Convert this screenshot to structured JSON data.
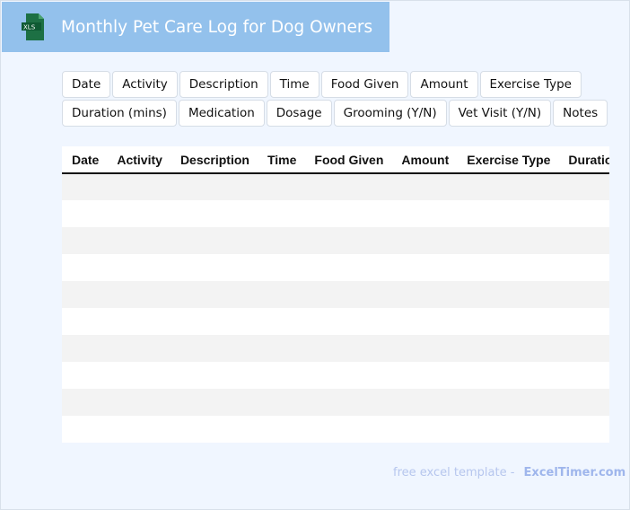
{
  "header": {
    "title": "Monthly Pet Care Log for Dog Owners",
    "icon": "xls-file-icon",
    "icon_text": "XLS",
    "color": "#93c1ec"
  },
  "columns": [
    "Date",
    "Activity",
    "Description",
    "Time",
    "Food Given",
    "Amount",
    "Exercise Type",
    "Duration (mins)",
    "Medication",
    "Dosage",
    "Grooming (Y/N)",
    "Vet Visit (Y/N)",
    "Notes"
  ],
  "rows": 10,
  "footer": {
    "text": "free excel template -",
    "brand": "ExcelTimer.com"
  }
}
